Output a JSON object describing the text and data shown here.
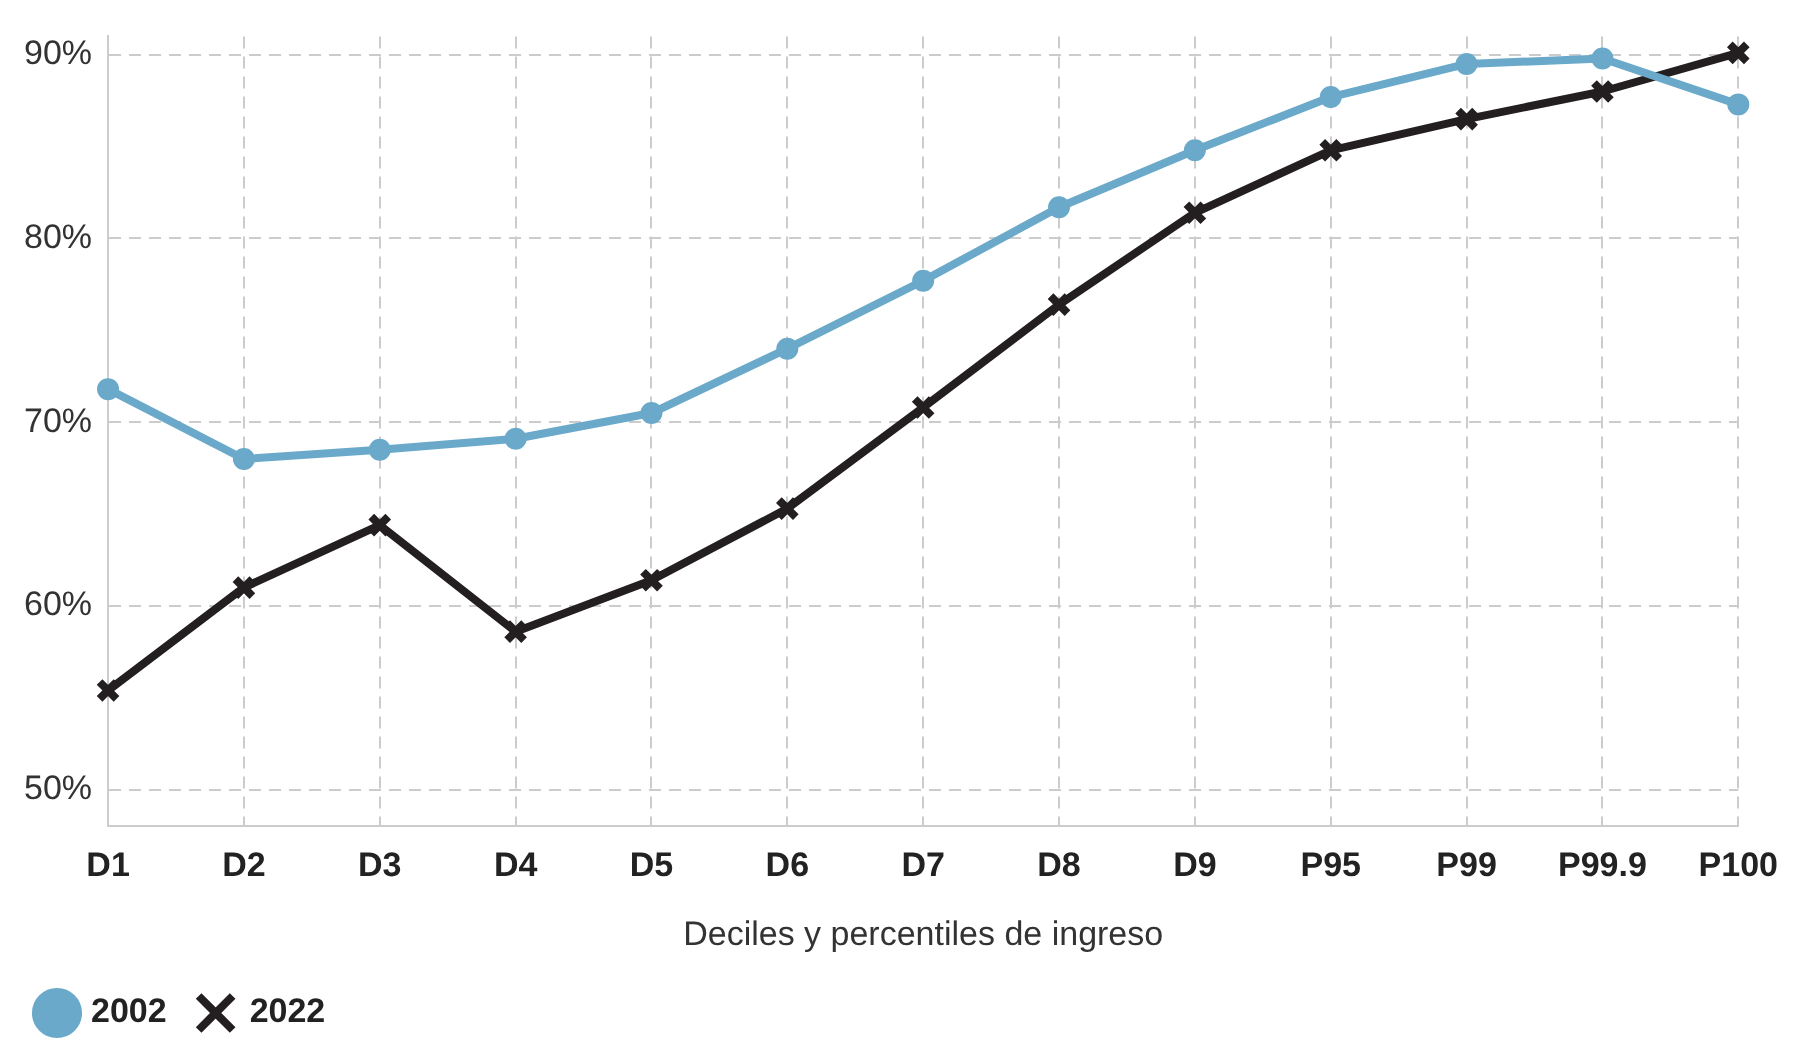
{
  "chart_data": {
    "type": "line",
    "xlabel": "Deciles y percentiles de ingreso",
    "categories": [
      "D1",
      "D2",
      "D3",
      "D4",
      "D5",
      "D6",
      "D7",
      "D8",
      "D9",
      "P95",
      "P99",
      "P99.9",
      "P100"
    ],
    "series": [
      {
        "name": "2002",
        "color": "#6aa9c9",
        "marker": "circle",
        "values": [
          71.8,
          68.0,
          68.5,
          69.1,
          70.5,
          74.0,
          77.7,
          81.7,
          84.8,
          87.7,
          89.5,
          89.8,
          87.3
        ]
      },
      {
        "name": "2022",
        "color": "#231f20",
        "marker": "cross",
        "values": [
          55.4,
          61.0,
          64.4,
          58.6,
          61.4,
          65.3,
          70.8,
          76.4,
          81.4,
          84.8,
          86.5,
          88.0,
          90.1
        ]
      }
    ],
    "ylim": [
      48,
      91
    ],
    "yticks": [
      {
        "value": 50,
        "label": "50%"
      },
      {
        "value": 60,
        "label": "60%"
      },
      {
        "value": 70,
        "label": "70%"
      },
      {
        "value": 80,
        "label": "80%"
      },
      {
        "value": 90,
        "label": "90%"
      }
    ],
    "grid": true,
    "legend": "bottom left",
    "line_style": "solid"
  }
}
